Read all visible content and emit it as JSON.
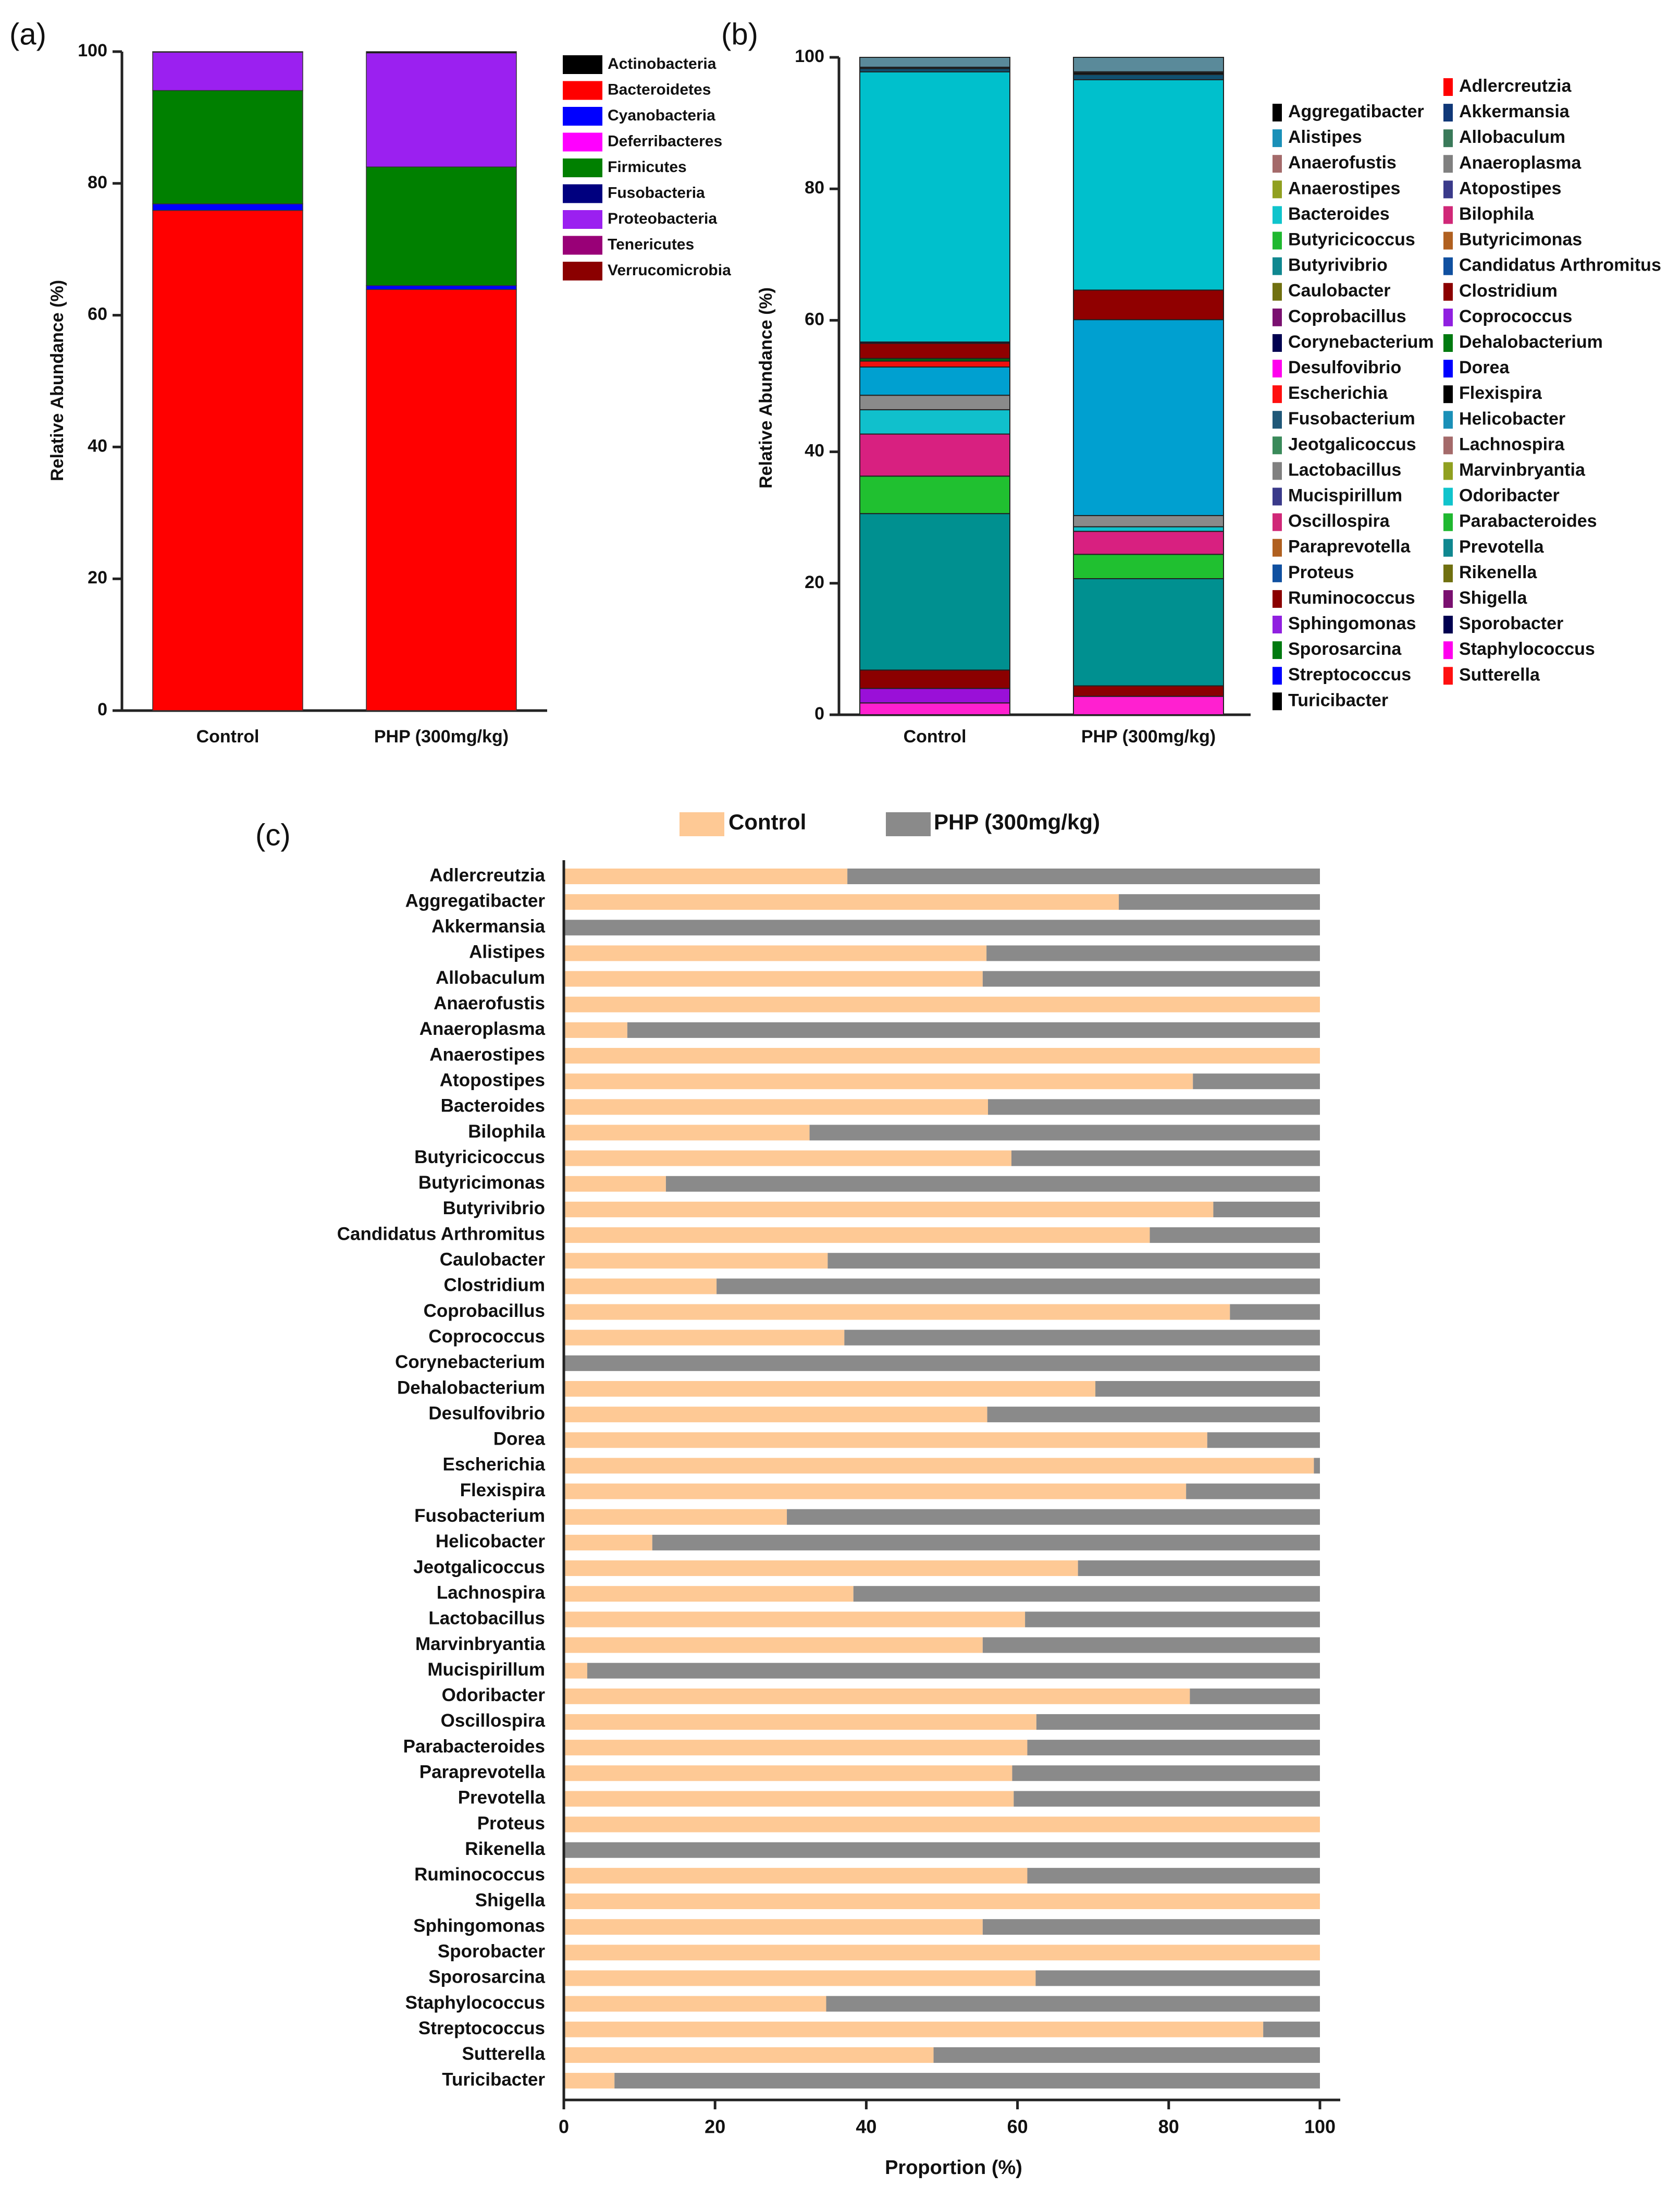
{
  "chart_data": [
    {
      "panel_label": "(a)",
      "type": "bar",
      "stacked": true,
      "ylabel": "Relative Abundance (%)",
      "ylim": [
        0,
        100
      ],
      "yticks": [
        "0",
        "20",
        "40",
        "60",
        "80",
        "100"
      ],
      "categories": [
        "Control",
        "PHP (300mg/kg)"
      ],
      "series": [
        {
          "name": "Verrucomicrobia",
          "color": "#8b0000",
          "values": [
            0.0,
            0.0
          ]
        },
        {
          "name": "Tenericutes",
          "color": "#990077",
          "values": [
            0.0,
            0.0
          ]
        },
        {
          "name": "Proteobacteria",
          "color": "#9b20f0",
          "values": [
            5.8,
            17.3
          ]
        },
        {
          "name": "Firmicutes",
          "color": "#008000",
          "values": [
            17.2,
            18.0
          ]
        },
        {
          "name": "Fusobacteria",
          "color": "#00007f",
          "values": [
            0.0,
            0.0
          ]
        },
        {
          "name": "Deferribacteres",
          "color": "#ff00ff",
          "values": [
            0.0,
            0.0
          ]
        },
        {
          "name": "Cyanobacteria",
          "color": "#0000ff",
          "values": [
            1.0,
            0.6
          ]
        },
        {
          "name": "Bacteroidetes",
          "color": "#ff0000",
          "values": [
            75.9,
            63.9
          ]
        },
        {
          "name": "Actinobacteria",
          "color": "#000000",
          "values": [
            0.1,
            0.2
          ]
        }
      ],
      "legend_order": [
        "Actinobacteria",
        "Bacteroidetes",
        "Cyanobacteria",
        "Deferribacteres",
        "Firmicutes",
        "Fusobacteria",
        "Proteobacteria",
        "Tenericutes",
        "Verrucomicrobia"
      ],
      "legend_position": "right"
    },
    {
      "panel_label": "(b)",
      "type": "bar",
      "stacked": true,
      "ylabel": "Relative Abundance (%)",
      "ylim": [
        0,
        100
      ],
      "yticks": [
        "0",
        "20",
        "40",
        "60",
        "80",
        "100"
      ],
      "categories": [
        "Control",
        "PHP (300mg/kg)"
      ],
      "stack_segments": [
        {
          "name": "Staphylococcus",
          "color": "#ff20d0",
          "values": [
            1.8,
            2.8
          ]
        },
        {
          "name": "Coprococcus",
          "color": "#9a10d8",
          "values": [
            2.2,
            0.0
          ]
        },
        {
          "name": "Ruminococcus",
          "color": "#8b0000",
          "values": [
            2.8,
            1.6
          ]
        },
        {
          "name": "Prevotella",
          "color": "#009090",
          "values": [
            23.8,
            16.3
          ]
        },
        {
          "name": "Butyricicoccus",
          "color": "#20c030",
          "values": [
            5.7,
            3.7
          ]
        },
        {
          "name": "Oscillospira",
          "color": "#d82080",
          "values": [
            6.4,
            3.5
          ]
        },
        {
          "name": "Odoribacter",
          "color": "#10c0cc",
          "values": [
            3.7,
            0.7
          ]
        },
        {
          "name": "Lactobacillus",
          "color": "#8a8a8a",
          "values": [
            2.2,
            1.7
          ]
        },
        {
          "name": "Helicobacter",
          "color": "#00a0d0",
          "values": [
            4.3,
            29.8
          ]
        },
        {
          "name": "Sutterella",
          "color": "#ee1010",
          "values": [
            0.9,
            0.0
          ]
        },
        {
          "name": "Dehalobacterium",
          "color": "#006a10",
          "values": [
            0.4,
            0.0
          ]
        },
        {
          "name": "Clostridium",
          "color": "#900000",
          "values": [
            2.3,
            4.5
          ]
        },
        {
          "name": "Corynebacterium",
          "color": "#000050",
          "values": [
            0.2,
            0.0
          ]
        },
        {
          "name": "Bacteroides",
          "color": "#00c0cc",
          "values": [
            41.1,
            32.0
          ]
        },
        {
          "name": "Fusobacterium",
          "color": "#105070",
          "values": [
            0.5,
            0.8
          ]
        },
        {
          "name": "Flexispira",
          "color": "#111111",
          "values": [
            0.2,
            0.3
          ]
        },
        {
          "name": "Turicibacter",
          "color": "#000000",
          "values": [
            0.0,
            0.1
          ]
        }
      ],
      "legend_col1": [
        {
          "name": "Aggregatibacter",
          "color": "#000000"
        },
        {
          "name": "Alistipes",
          "color": "#1a90b8"
        },
        {
          "name": "Anaerofustis",
          "color": "#a46a6a"
        },
        {
          "name": "Anaerostipes",
          "color": "#90a020"
        },
        {
          "name": "Bacteroides",
          "color": "#10c4cc"
        },
        {
          "name": "Butyricicoccus",
          "color": "#20b830"
        },
        {
          "name": "Butyrivibrio",
          "color": "#108890"
        },
        {
          "name": "Caulobacter",
          "color": "#707010"
        },
        {
          "name": "Coprobacillus",
          "color": "#7a1070"
        },
        {
          "name": "Corynebacterium",
          "color": "#000050"
        },
        {
          "name": "Desulfovibrio",
          "color": "#ff00ee"
        },
        {
          "name": "Escherichia",
          "color": "#ff1010"
        },
        {
          "name": "Fusobacterium",
          "color": "#205878"
        },
        {
          "name": "Jeotgalicoccus",
          "color": "#3a8a5a"
        },
        {
          "name": "Lactobacillus",
          "color": "#808080"
        },
        {
          "name": "Mucispirillum",
          "color": "#3a3a8a"
        },
        {
          "name": "Oscillospira",
          "color": "#d02878"
        },
        {
          "name": "Paraprevotella",
          "color": "#b06020"
        },
        {
          "name": "Proteus",
          "color": "#1050a0"
        },
        {
          "name": "Ruminococcus",
          "color": "#8b0000"
        },
        {
          "name": "Sphingomonas",
          "color": "#9020e0"
        },
        {
          "name": "Sporosarcina",
          "color": "#007a10"
        },
        {
          "name": "Streptococcus",
          "color": "#0000ff"
        },
        {
          "name": "Turicibacter",
          "color": "#000000"
        }
      ],
      "legend_col2": [
        {
          "name": "Adlercreutzia",
          "color": "#ff0000"
        },
        {
          "name": "Akkermansia",
          "color": "#103878"
        },
        {
          "name": "Allobaculum",
          "color": "#3a7a5a"
        },
        {
          "name": "Anaeroplasma",
          "color": "#808080"
        },
        {
          "name": "Atopostipes",
          "color": "#3a3a8a"
        },
        {
          "name": "Bilophila",
          "color": "#d02878"
        },
        {
          "name": "Butyricimonas",
          "color": "#b06020"
        },
        {
          "name": "Candidatus Arthromitus",
          "color": "#1050a0"
        },
        {
          "name": "Clostridium",
          "color": "#8b0000"
        },
        {
          "name": "Coprococcus",
          "color": "#9020e0"
        },
        {
          "name": "Dehalobacterium",
          "color": "#007a10"
        },
        {
          "name": "Dorea",
          "color": "#0000ff"
        },
        {
          "name": "Flexispira",
          "color": "#000000"
        },
        {
          "name": "Helicobacter",
          "color": "#1a90b8"
        },
        {
          "name": "Lachnospira",
          "color": "#a46a6a"
        },
        {
          "name": "Marvinbryantia",
          "color": "#90a020"
        },
        {
          "name": "Odoribacter",
          "color": "#10c4cc"
        },
        {
          "name": "Parabacteroides",
          "color": "#20b830"
        },
        {
          "name": "Prevotella",
          "color": "#108890"
        },
        {
          "name": "Rikenella",
          "color": "#707010"
        },
        {
          "name": "Shigella",
          "color": "#7a1070"
        },
        {
          "name": "Sporobacter",
          "color": "#000050"
        },
        {
          "name": "Staphylococcus",
          "color": "#ff00ee"
        },
        {
          "name": "Sutterella",
          "color": "#ff1010"
        }
      ],
      "legend_position": "right"
    },
    {
      "panel_label": "(c)",
      "type": "bar",
      "orientation": "horizontal",
      "stacked": true,
      "xlabel": "Proportion (%)",
      "xlim": [
        0,
        100
      ],
      "xticks": [
        "0",
        "20",
        "40",
        "60",
        "80",
        "100"
      ],
      "legend_position": "top",
      "series": [
        {
          "name": "Control",
          "color": "#fec995"
        },
        {
          "name": "PHP (300mg/kg)",
          "color": "#8a8a8a"
        }
      ],
      "categories": [
        "Adlercreutzia",
        "Aggregatibacter",
        "Akkermansia",
        "Alistipes",
        "Allobaculum",
        "Anaerofustis",
        "Anaeroplasma",
        "Anaerostipes",
        "Atopostipes",
        "Bacteroides",
        "Bilophila",
        "Butyricicoccus",
        "Butyricimonas",
        "Butyrivibrio",
        "Candidatus Arthromitus",
        "Caulobacter",
        "Clostridium",
        "Coprobacillus",
        "Coprococcus",
        "Corynebacterium",
        "Dehalobacterium",
        "Desulfovibrio",
        "Dorea",
        "Escherichia",
        "Flexispira",
        "Fusobacterium",
        "Helicobacter",
        "Jeotgalicoccus",
        "Lachnospira",
        "Lactobacillus",
        "Marvinbryantia",
        "Mucispirillum",
        "Odoribacter",
        "Oscillospira",
        "Parabacteroides",
        "Paraprevotella",
        "Prevotella",
        "Proteus",
        "Rikenella",
        "Ruminococcus",
        "Shigella",
        "Sphingomonas",
        "Sporobacter",
        "Sporosarcina",
        "Staphylococcus",
        "Streptococcus",
        "Sutterella",
        "Turicibacter"
      ],
      "control_values": [
        37.5,
        73.4,
        0,
        55.9,
        55.4,
        100,
        8.4,
        100,
        83.2,
        56.1,
        32.5,
        59.2,
        13.5,
        85.9,
        77.5,
        34.9,
        20.2,
        88.1,
        37.1,
        0,
        70.3,
        56.0,
        85.1,
        99.2,
        82.3,
        29.5,
        11.7,
        68.0,
        38.3,
        61.0,
        55.4,
        3.1,
        82.8,
        62.5,
        61.3,
        59.3,
        59.5,
        100,
        0,
        61.3,
        100,
        55.4,
        100,
        62.4,
        34.7,
        92.5,
        48.9,
        6.7
      ]
    }
  ]
}
